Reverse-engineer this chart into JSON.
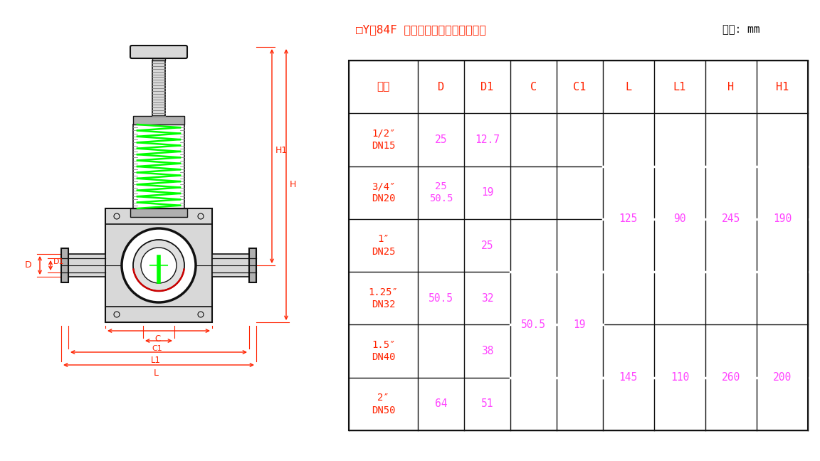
{
  "title_text": "□Y－84F 卫生级快装减压阀外形尺寸",
  "title_unit": "单位: mm",
  "headers": [
    "规格",
    "D",
    "D1",
    "C",
    "C1",
    "L",
    "L1",
    "H",
    "H1"
  ],
  "red": "#FF2200",
  "magenta": "#FF44FF",
  "black": "#111111",
  "green": "#00FF00",
  "gray_light": "#D8D8D8",
  "gray_med": "#B0B0B0",
  "gray_dark": "#888888",
  "white": "#FFFFFF"
}
